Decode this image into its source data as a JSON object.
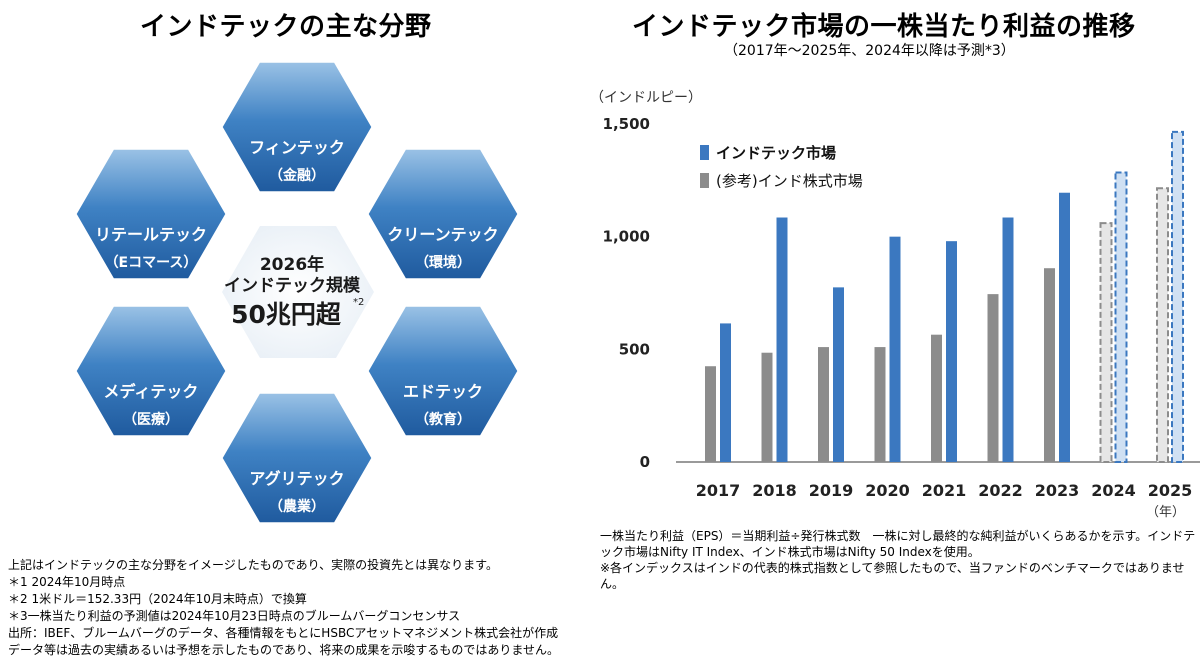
{
  "left": {
    "title": "インドテックの主な分野",
    "center": {
      "line1": "2026年",
      "line2": "インドテック規模",
      "line3": "50兆円超",
      "sup": "*2"
    },
    "segments": [
      {
        "name": "フィンテック",
        "sub": "（金融）"
      },
      {
        "name": "クリーンテック",
        "sub": "（環境）"
      },
      {
        "name": "エドテック",
        "sub": "（教育）"
      },
      {
        "name": "アグリテック",
        "sub": "（農業）"
      },
      {
        "name": "メディテック",
        "sub": "（医療）"
      },
      {
        "name": "リテールテック",
        "sub": "（Eコマース）"
      }
    ]
  },
  "right": {
    "title": "インドテック市場の一株当たり利益の推移",
    "subtitle": "（2017年～2025年、2024年以降は予測*3）"
  },
  "chart_data": {
    "type": "bar",
    "ylabel": "（インドルピー）",
    "xunit": "（年）",
    "ylim": [
      0,
      1500
    ],
    "yticks": [
      "0",
      "500",
      "1,000",
      "1,500"
    ],
    "ytick_values": [
      0,
      500,
      1000,
      1500
    ],
    "categories": [
      "2017",
      "2018",
      "2019",
      "2020",
      "2021",
      "2022",
      "2023",
      "2024",
      "2025"
    ],
    "forecast_from": "2024",
    "legend_position": "top-left",
    "grid": false,
    "series": [
      {
        "name": "(参考)インド株式市場",
        "color": "#8c8c8c",
        "values": [
          425,
          485,
          510,
          510,
          565,
          745,
          860,
          1060,
          1215
        ]
      },
      {
        "name": "インドテック市場",
        "color": "#3b78c0",
        "values": [
          615,
          1085,
          775,
          1000,
          980,
          1085,
          1195,
          1285,
          1465
        ]
      }
    ]
  },
  "notes_left": [
    "上記はインドテックの主な分野をイメージしたものであり、実際の投資先とは異なります。",
    "＊1 2024年10月時点",
    "＊2 1米ドル＝152.33円（2024年10月末時点）で換算",
    "＊3一株当たり利益の予測値は2024年10月23日時点のブルームバーグコンセンサス",
    "出所：IBEF、ブルームバーグのデータ、各種情報をもとにHSBCアセットマネジメント株式会社が作成",
    "データ等は過去の実績あるいは予想を示したものであり、将来の成果を示唆するものではありません。"
  ],
  "notes_right": [
    "一株当たり利益（EPS）＝当期利益÷発行株式数　一株に対し最終的な純利益がいくらあるかを示す。インドテック市場はNifty IT Index、インド株式市場はNifty 50 Indexを使用。",
    "※各インデックスはインドの代表的株式指数として参照したもので、当ファンドのベンチマークではありません。"
  ],
  "colors": {
    "hex_blue": "#2f6fb3",
    "hex_light": "#d9e8f5",
    "bar_blue": "#3b78c0",
    "bar_gray": "#8c8c8c"
  }
}
